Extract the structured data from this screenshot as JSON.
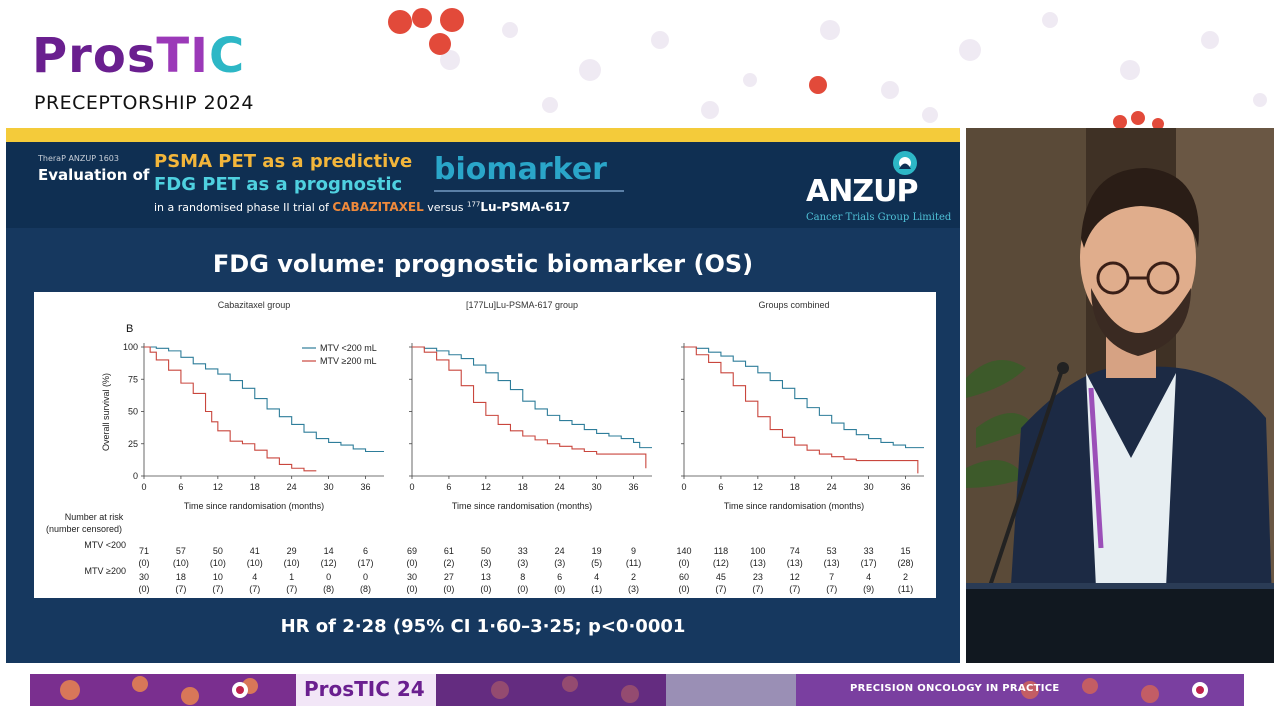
{
  "branding": {
    "logo_text": "ProsTIC",
    "subtitle": "PRECEPTORSHIP 2024"
  },
  "slide": {
    "header": {
      "trial_tag": "TheraP ANZUP 1603",
      "evaluation_of": "Evaluation of",
      "line1": "PSMA PET as a predictive",
      "line2": "FDG PET as a prognostic",
      "biomarker": "biomarker",
      "line3_prefix": "in a randomised phase II trial of",
      "line3_drug1": "CABAZITAXEL",
      "line3_versus": "versus",
      "line3_drug2_sup": "177",
      "line3_drug2": "Lu-PSMA-617"
    },
    "sponsor": {
      "name": "ANZUP",
      "subtitle": "Cancer Trials Group Limited"
    },
    "title": "FDG volume: prognostic biomarker (OS)",
    "hr_text": "HR of 2·28 (95% CI 1·60–3·25; p<0·0001"
  },
  "banner": {
    "logo_text": "ProsTIC 24",
    "tagline": "PRECISION ONCOLOGY IN PRACTICE"
  },
  "colors": {
    "slide_bg": "#16385f",
    "header_bg": "#0f2f52",
    "accent_yellow": "#f4cb3a",
    "series_low": "#2e7d9a",
    "series_high": "#c9463d"
  },
  "chart_data": {
    "type": "line",
    "panel_label": "B",
    "ylabel": "Overall survival (%)",
    "xlabel": "Time since randomisation (months)",
    "xticks": [
      0,
      6,
      12,
      18,
      24,
      30,
      36
    ],
    "yticks": [
      0,
      25,
      50,
      75,
      100
    ],
    "xlim": [
      0,
      39
    ],
    "ylim": [
      0,
      100
    ],
    "legend": [
      "MTV <200 mL",
      "MTV ≥200 mL"
    ],
    "risk_header": [
      "Number at risk",
      "(number censored)"
    ],
    "risk_row_labels": [
      "MTV <200",
      "MTV ≥200"
    ],
    "panels": [
      {
        "title": "Cabazitaxel group",
        "series": [
          {
            "name": "MTV <200 mL",
            "x": [
              0,
              2,
              4,
              6,
              8,
              10,
              12,
              14,
              16,
              18,
              20,
              22,
              24,
              26,
              28,
              30,
              32,
              34,
              36,
              39
            ],
            "y": [
              100,
              99,
              97,
              92,
              87,
              83,
              79,
              74,
              68,
              60,
              52,
              46,
              40,
              34,
              29,
              26,
              24,
              21,
              19,
              19
            ]
          },
          {
            "name": "MTV ≥200 mL",
            "x": [
              0,
              1,
              2,
              4,
              6,
              8,
              10,
              11,
              12,
              14,
              16,
              18,
              20,
              22,
              24,
              26,
              28
            ],
            "y": [
              100,
              96,
              90,
              82,
              72,
              64,
              50,
              42,
              35,
              27,
              25,
              20,
              14,
              9,
              6,
              4,
              4
            ]
          }
        ],
        "risk_low": [
          "71",
          "57",
          "50",
          "41",
          "29",
          "14",
          "6"
        ],
        "censor_low": [
          "(0)",
          "(10)",
          "(10)",
          "(10)",
          "(10)",
          "(12)",
          "(17)"
        ],
        "risk_high": [
          "30",
          "18",
          "10",
          "4",
          "1",
          "0",
          "0"
        ],
        "censor_high": [
          "(0)",
          "(7)",
          "(7)",
          "(7)",
          "(7)",
          "(8)",
          "(8)"
        ]
      },
      {
        "title": "[177Lu]Lu-PSMA-617 group",
        "series": [
          {
            "name": "MTV <200 mL",
            "x": [
              0,
              2,
              4,
              6,
              8,
              10,
              12,
              14,
              16,
              18,
              20,
              22,
              24,
              26,
              28,
              30,
              32,
              34,
              36,
              37,
              39
            ],
            "y": [
              100,
              99,
              97,
              94,
              91,
              86,
              80,
              74,
              67,
              58,
              52,
              47,
              43,
              40,
              36,
              33,
              31,
              29,
              26,
              22,
              22
            ]
          },
          {
            "name": "MTV ≥200 mL",
            "x": [
              0,
              2,
              4,
              6,
              8,
              10,
              12,
              14,
              16,
              18,
              20,
              22,
              24,
              26,
              28,
              30,
              32,
              34,
              36,
              38,
              38
            ],
            "y": [
              100,
              96,
              90,
              82,
              70,
              57,
              47,
              40,
              35,
              31,
              28,
              25,
              23,
              21,
              19,
              17,
              17,
              17,
              17,
              17,
              6
            ]
          }
        ],
        "risk_low": [
          "69",
          "61",
          "50",
          "33",
          "24",
          "19",
          "9"
        ],
        "censor_low": [
          "(0)",
          "(2)",
          "(3)",
          "(3)",
          "(3)",
          "(5)",
          "(11)"
        ],
        "risk_high": [
          "30",
          "27",
          "13",
          "8",
          "6",
          "4",
          "2"
        ],
        "censor_high": [
          "(0)",
          "(0)",
          "(0)",
          "(0)",
          "(0)",
          "(1)",
          "(3)"
        ]
      },
      {
        "title": "Groups combined",
        "series": [
          {
            "name": "MTV <200 mL",
            "x": [
              0,
              2,
              4,
              6,
              8,
              10,
              12,
              14,
              16,
              18,
              20,
              22,
              24,
              26,
              28,
              30,
              32,
              34,
              36,
              39
            ],
            "y": [
              100,
              99,
              96,
              93,
              89,
              85,
              80,
              74,
              68,
              60,
              53,
              47,
              41,
              36,
              32,
              29,
              26,
              24,
              22,
              22
            ]
          },
          {
            "name": "MTV ≥200 mL",
            "x": [
              0,
              2,
              4,
              6,
              8,
              10,
              12,
              14,
              16,
              18,
              20,
              22,
              24,
              26,
              28,
              30,
              32,
              34,
              36,
              38,
              38
            ],
            "y": [
              100,
              94,
              88,
              80,
              70,
              58,
              46,
              36,
              30,
              24,
              20,
              17,
              15,
              13,
              12,
              12,
              12,
              12,
              12,
              12,
              2
            ]
          }
        ],
        "risk_low": [
          "140",
          "118",
          "100",
          "74",
          "53",
          "33",
          "15"
        ],
        "censor_low": [
          "(0)",
          "(12)",
          "(13)",
          "(13)",
          "(13)",
          "(17)",
          "(28)"
        ],
        "risk_high": [
          "60",
          "45",
          "23",
          "12",
          "7",
          "4",
          "2"
        ],
        "censor_high": [
          "(0)",
          "(7)",
          "(7)",
          "(7)",
          "(7)",
          "(9)",
          "(11)"
        ]
      }
    ]
  }
}
